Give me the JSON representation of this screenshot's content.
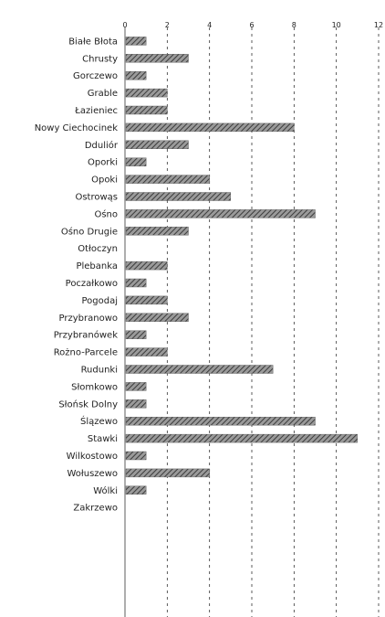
{
  "chart_data": {
    "type": "bar",
    "orientation": "horizontal",
    "title": "",
    "xlim": [
      0,
      12
    ],
    "xticks": [
      0,
      2,
      4,
      6,
      8,
      10,
      12
    ],
    "categories": [
      "Białe Błota",
      "Chrusty",
      "Gorczewo",
      "Grable",
      "Łazieniec",
      "Nowy Ciechocinek",
      "Dduliór",
      "Oporki",
      "Opoki",
      "Ostrowąs",
      "Ośno",
      "Ośno Drugie",
      "Otłoczyn",
      "Plebanka",
      "Poczałkowo",
      "Pogodaj",
      "Przybranowo",
      "Przybranówek",
      "Rożno-Parcele",
      "Rudunki",
      "Słomkowo",
      "Słońsk Dolny",
      "Ślązewo",
      "Stawki",
      "Wilkostowo",
      "Wołuszewo",
      "Wólki",
      "Zakrzewo"
    ],
    "values": [
      1,
      3,
      1,
      2,
      2,
      8,
      3,
      1,
      4,
      5,
      9,
      3,
      0,
      2,
      1,
      2,
      3,
      1,
      2,
      7,
      1,
      1,
      9,
      11,
      1,
      4,
      1,
      0
    ],
    "bar_color": "#6e6e6e",
    "grid": true,
    "legend": "none"
  }
}
